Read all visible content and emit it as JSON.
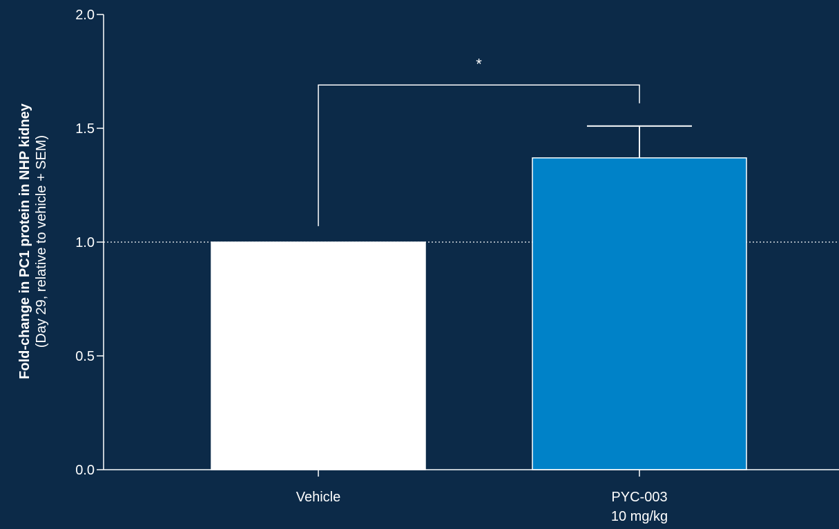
{
  "chart_data": {
    "type": "bar",
    "categories": [
      [
        "Vehicle"
      ],
      [
        "PYC-003",
        "10 mg/kg"
      ]
    ],
    "values": [
      1.0,
      1.37
    ],
    "error_plus": [
      0,
      0.14
    ],
    "ylabel_main": "Fold-change in PC1 protein in NHP kidney",
    "ylabel_sub": "(Day 29, relative to vehicle + SEM)",
    "ylim": [
      0,
      2.0
    ],
    "yticks": [
      0.0,
      0.5,
      1.0,
      1.5,
      2.0
    ],
    "ytick_labels": [
      "0.0",
      "0.5",
      "1.0",
      "1.5",
      "2.0"
    ],
    "reference_line": 1.0,
    "significance": {
      "label": "*",
      "between": [
        0,
        1
      ],
      "level": 1.69
    },
    "grid": false,
    "colors": {
      "background": "#0c2a48",
      "bars": [
        "#ffffff",
        "#0082c8"
      ],
      "axis": "#ffffff"
    }
  }
}
